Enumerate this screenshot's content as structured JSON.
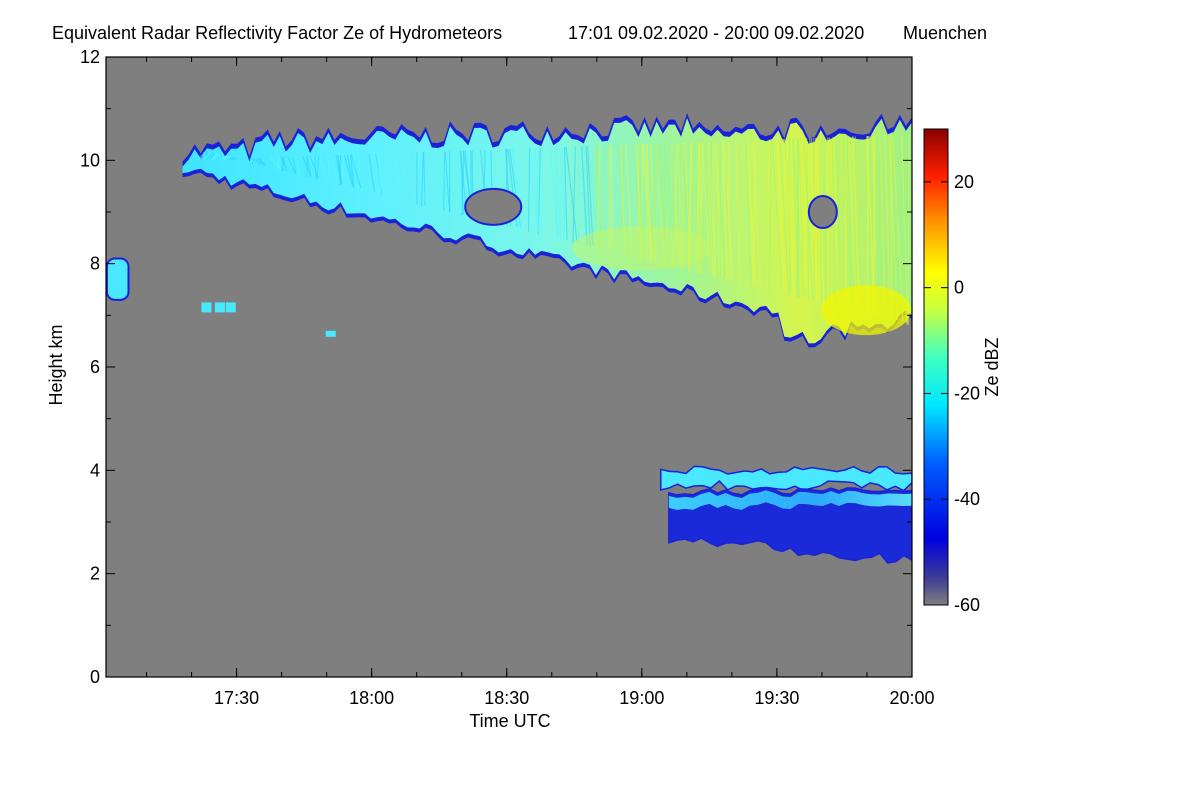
{
  "chart_data": {
    "type": "heatmap",
    "title": "Equivalent Radar Reflectivity Factor Ze of Hydrometeors",
    "time_range_text": "17:01 09.02.2020 - 20:00 09.02.2020",
    "location": "Muenchen",
    "xlabel": "Time UTC",
    "ylabel": "Height km",
    "xlim": [
      17.0167,
      20.0
    ],
    "ylim": [
      0,
      12
    ],
    "x_ticks": [
      {
        "value": 17.5,
        "label": "17:30"
      },
      {
        "value": 18.0,
        "label": "18:00"
      },
      {
        "value": 18.5,
        "label": "18:30"
      },
      {
        "value": 19.0,
        "label": "19:00"
      },
      {
        "value": 19.5,
        "label": "19:30"
      },
      {
        "value": 20.0,
        "label": "20:00"
      }
    ],
    "y_ticks": [
      {
        "value": 0,
        "label": "0"
      },
      {
        "value": 2,
        "label": "2"
      },
      {
        "value": 4,
        "label": "4"
      },
      {
        "value": 6,
        "label": "6"
      },
      {
        "value": 8,
        "label": "8"
      },
      {
        "value": 10,
        "label": "10"
      },
      {
        "value": 12,
        "label": "12"
      }
    ],
    "colorbar": {
      "label": "Ze dBZ",
      "range": [
        -60,
        30
      ],
      "ticks": [
        {
          "value": 20,
          "label": "20"
        },
        {
          "value": 0,
          "label": "0"
        },
        {
          "value": -20,
          "label": "-20"
        },
        {
          "value": -40,
          "label": "-40"
        },
        {
          "value": -60,
          "label": "-60"
        }
      ]
    },
    "background_color": "#7f7f7f",
    "features": [
      {
        "name": "upper-cloud-band",
        "x_start": 17.3,
        "x_end": 20.0,
        "top_start": 10.2,
        "top_end": 10.7,
        "base_start": 9.8,
        "base_end": 6.4,
        "ze_dbz": [
          -30,
          -5
        ]
      },
      {
        "name": "small-cell-left",
        "x_start": 17.02,
        "x_end": 17.1,
        "top": 8.1,
        "base": 7.3,
        "ze_dbz": [
          -30,
          -20
        ]
      },
      {
        "name": "low-cloud-upper",
        "x_start": 19.07,
        "x_end": 20.0,
        "top": 4.0,
        "base": 3.7,
        "ze_dbz": [
          -35,
          -25
        ]
      },
      {
        "name": "low-cloud-lower",
        "x_start": 19.1,
        "x_end": 20.0,
        "top": 3.6,
        "base": 2.6,
        "ze_dbz": [
          -45,
          -25
        ]
      }
    ]
  }
}
